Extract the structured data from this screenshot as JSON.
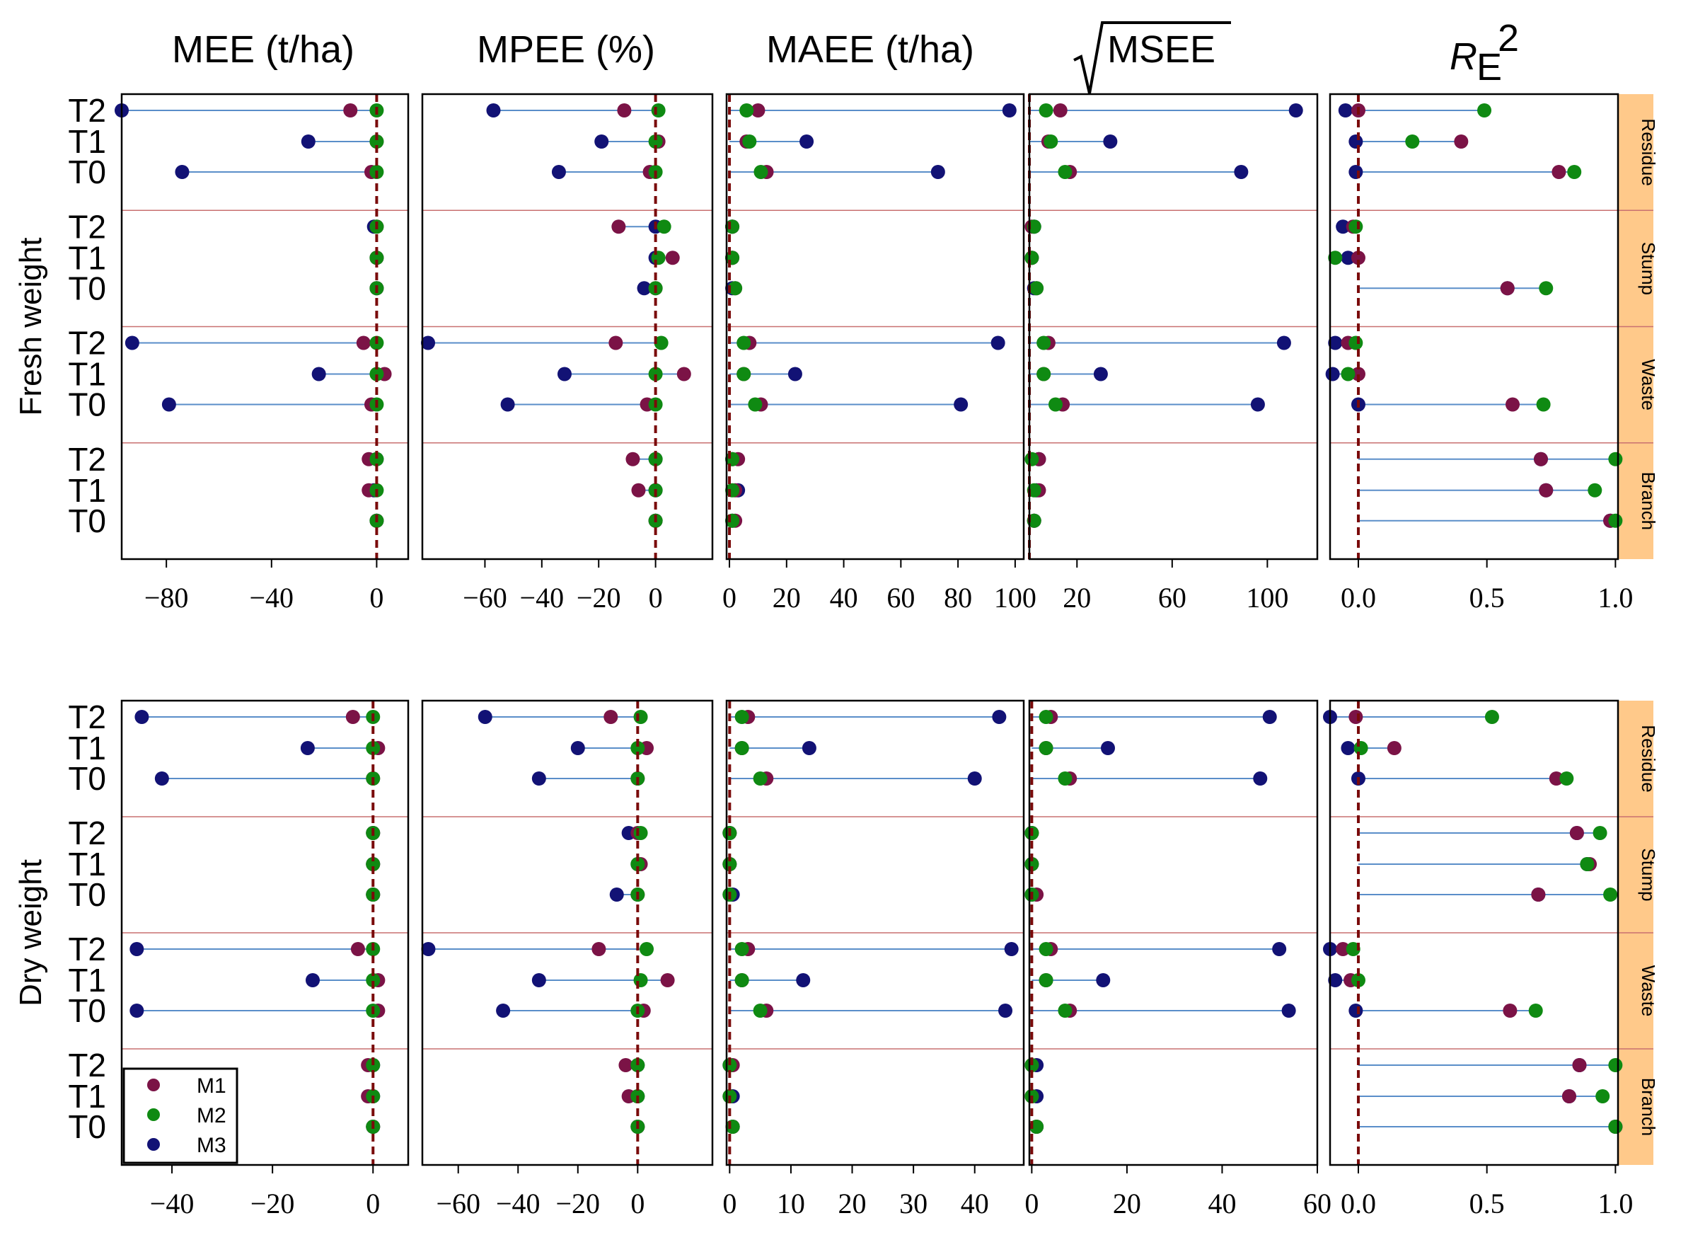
{
  "chart_data": {
    "type": "scatter",
    "title": "",
    "metrics": [
      {
        "label": "MEE (t/ha)",
        "symbol": ""
      },
      {
        "label": "MPEE (%)",
        "symbol": ""
      },
      {
        "label": "MAEE (t/ha)",
        "symbol": ""
      },
      {
        "label": "MSEE",
        "symbol": "sqrt"
      },
      {
        "label": "R",
        "symbol": "R2"
      }
    ],
    "r2_subscript": "E",
    "r2_superscript": "2",
    "groups": [
      "Residue",
      "Stump",
      "Waste",
      "Branch"
    ],
    "rows": [
      "T2",
      "T1",
      "T0"
    ],
    "models": [
      "M1",
      "M2",
      "M3"
    ],
    "colors": {
      "M1": "#7b1346",
      "M2": "#0f8a12",
      "M3": "#121275",
      "stem": "#5a8ec9",
      "refline": "#7a0a0a",
      "sep": "#c87070",
      "strip_bg": "#ffc98a"
    },
    "legend": {
      "position": "bottom-left",
      "items": [
        "M1",
        "M2",
        "M3"
      ]
    },
    "blocks": [
      {
        "name": "Fresh weight",
        "panels": [
          {
            "metric": "MEE (t/ha)",
            "xlim": [
              -97,
              12
            ],
            "ref": 0,
            "ticks": [
              -80,
              -40,
              0
            ],
            "data": {
              "Residue": {
                "T2": [
                  -10,
                  0,
                  -97
                ],
                "T1": [
                  0,
                  0,
                  -26
                ],
                "T0": [
                  -2,
                  0,
                  -74
                ]
              },
              "Stump": {
                "T2": [
                  0,
                  0,
                  -1
                ],
                "T1": [
                  0,
                  0,
                  0
                ],
                "T0": [
                  0,
                  0,
                  0
                ]
              },
              "Waste": {
                "T2": [
                  -5,
                  0,
                  -93
                ],
                "T1": [
                  3,
                  0,
                  -22
                ],
                "T0": [
                  -2,
                  0,
                  -79
                ]
              },
              "Branch": {
                "T2": [
                  -3,
                  0,
                  0
                ],
                "T1": [
                  -3,
                  0,
                  -1
                ],
                "T0": [
                  0,
                  0,
                  0
                ]
              }
            }
          },
          {
            "metric": "MPEE (%)",
            "xlim": [
              -82,
              20
            ],
            "ref": 0,
            "ticks": [
              -60,
              -40,
              -20,
              0
            ],
            "data": {
              "Residue": {
                "T2": [
                  -11,
                  1,
                  -57
                ],
                "T1": [
                  1,
                  0,
                  -19
                ],
                "T0": [
                  -2,
                  0,
                  -34
                ]
              },
              "Stump": {
                "T2": [
                  -13,
                  3,
                  0
                ],
                "T1": [
                  6,
                  1,
                  0
                ],
                "T0": [
                  0,
                  0,
                  -4
                ]
              },
              "Waste": {
                "T2": [
                  -14,
                  2,
                  -80
                ],
                "T1": [
                  10,
                  0,
                  -32
                ],
                "T0": [
                  -3,
                  0,
                  -52
                ]
              },
              "Branch": {
                "T2": [
                  -8,
                  0,
                  0
                ],
                "T1": [
                  -6,
                  0,
                  0
                ],
                "T0": [
                  0,
                  0,
                  0
                ]
              }
            }
          },
          {
            "metric": "MAEE (t/ha)",
            "xlim": [
              -1,
              103
            ],
            "ref": 0,
            "ticks": [
              0,
              20,
              40,
              60,
              80,
              100
            ],
            "data": {
              "Residue": {
                "T2": [
                  10,
                  6,
                  98
                ],
                "T1": [
                  6,
                  7,
                  27
                ],
                "T0": [
                  13,
                  11,
                  73
                ]
              },
              "Stump": {
                "T2": [
                  1,
                  1,
                  1
                ],
                "T1": [
                  1,
                  1,
                  1
                ],
                "T0": [
                  2,
                  2,
                  1
                ]
              },
              "Waste": {
                "T2": [
                  7,
                  5,
                  94
                ],
                "T1": [
                  5,
                  5,
                  23
                ],
                "T0": [
                  11,
                  9,
                  81
                ]
              },
              "Branch": {
                "T2": [
                  3,
                  1,
                  1
                ],
                "T1": [
                  2,
                  1,
                  3
                ],
                "T0": [
                  2,
                  1,
                  1
                ]
              }
            }
          },
          {
            "metric": "MSEE",
            "xlim": [
              0,
              121
            ],
            "ref": 0,
            "ticks": [
              20,
              60,
              100
            ],
            "data": {
              "Residue": {
                "T2": [
                  13,
                  7,
                  112
                ],
                "T1": [
                  8,
                  9,
                  34
                ],
                "T0": [
                  17,
                  15,
                  89
                ]
              },
              "Stump": {
                "T2": [
                  1,
                  2,
                  2
                ],
                "T1": [
                  1,
                  1,
                  1
                ],
                "T0": [
                  3,
                  3,
                  2
                ]
              },
              "Waste": {
                "T2": [
                  8,
                  6,
                  107
                ],
                "T1": [
                  6,
                  6,
                  30
                ],
                "T0": [
                  14,
                  11,
                  96
                ]
              },
              "Branch": {
                "T2": [
                  4,
                  1,
                  4
                ],
                "T1": [
                  4,
                  2,
                  3
                ],
                "T0": [
                  2,
                  2,
                  2
                ]
              }
            }
          },
          {
            "metric": "R",
            "xlim": [
              -0.11,
              1.01
            ],
            "ref": 0,
            "ticks": [
              0.0,
              0.5,
              1.0
            ],
            "data": {
              "Residue": {
                "T2": [
                  0.0,
                  0.49,
                  -0.05
                ],
                "T1": [
                  0.4,
                  0.21,
                  -0.01
                ],
                "T0": [
                  0.78,
                  0.84,
                  -0.01
                ]
              },
              "Stump": {
                "T2": [
                  -0.02,
                  -0.01,
                  -0.06
                ],
                "T1": [
                  0.0,
                  -0.09,
                  -0.04
                ],
                "T0": [
                  0.58,
                  0.73,
                  0.58
                ]
              },
              "Waste": {
                "T2": [
                  -0.04,
                  -0.01,
                  -0.09
                ],
                "T1": [
                  0.0,
                  -0.04,
                  -0.1
                ],
                "T0": [
                  0.6,
                  0.72,
                  0.0
                ]
              },
              "Branch": {
                "T2": [
                  0.71,
                  1.0,
                  0.71
                ],
                "T1": [
                  0.73,
                  0.92,
                  0.73
                ],
                "T0": [
                  0.98,
                  1.0,
                  0.98
                ]
              }
            }
          }
        ]
      },
      {
        "name": "Dry weight",
        "panels": [
          {
            "metric": "MEE (t/ha)",
            "xlim": [
              -50,
              7
            ],
            "ref": 0,
            "ticks": [
              -40,
              -20,
              0
            ],
            "data": {
              "Residue": {
                "T2": [
                  -4,
                  0,
                  -46
                ],
                "T1": [
                  1,
                  0,
                  -13
                ],
                "T0": [
                  0,
                  0,
                  -42
                ]
              },
              "Stump": {
                "T2": [
                  0,
                  0,
                  0
                ],
                "T1": [
                  0,
                  0,
                  0
                ],
                "T0": [
                  0,
                  0,
                  0
                ]
              },
              "Waste": {
                "T2": [
                  -3,
                  0,
                  -47
                ],
                "T1": [
                  1,
                  0,
                  -12
                ],
                "T0": [
                  1,
                  0,
                  -47
                ]
              },
              "Branch": {
                "T2": [
                  -1,
                  0,
                  0
                ],
                "T1": [
                  -1,
                  0,
                  0
                ],
                "T0": [
                  0,
                  0,
                  0
                ]
              }
            }
          },
          {
            "metric": "MPEE (%)",
            "xlim": [
              -72,
              25
            ],
            "ref": 0,
            "ticks": [
              -60,
              -40,
              -20,
              0
            ],
            "data": {
              "Residue": {
                "T2": [
                  -9,
                  1,
                  -51
                ],
                "T1": [
                  3,
                  0,
                  -20
                ],
                "T0": [
                  0,
                  0,
                  -33
                ]
              },
              "Stump": {
                "T2": [
                  0,
                  1,
                  -3
                ],
                "T1": [
                  1,
                  0,
                  0
                ],
                "T0": [
                  0,
                  0,
                  -7
                ]
              },
              "Waste": {
                "T2": [
                  -13,
                  3,
                  -70
                ],
                "T1": [
                  10,
                  1,
                  -33
                ],
                "T0": [
                  2,
                  0,
                  -45
                ]
              },
              "Branch": {
                "T2": [
                  -4,
                  0,
                  0
                ],
                "T1": [
                  -3,
                  0,
                  0
                ],
                "T0": [
                  0,
                  0,
                  0
                ]
              }
            }
          },
          {
            "metric": "MAEE (t/ha)",
            "xlim": [
              -0.5,
              48
            ],
            "ref": 0,
            "ticks": [
              0,
              10,
              20,
              30,
              40
            ],
            "data": {
              "Residue": {
                "T2": [
                  3,
                  2,
                  44
                ],
                "T1": [
                  2,
                  2,
                  13
                ],
                "T0": [
                  6,
                  5,
                  40
                ]
              },
              "Stump": {
                "T2": [
                  0,
                  0,
                  0
                ],
                "T1": [
                  0,
                  0,
                  0
                ],
                "T0": [
                  0,
                  0,
                  0.5
                ]
              },
              "Waste": {
                "T2": [
                  3,
                  2,
                  46
                ],
                "T1": [
                  2,
                  2,
                  12
                ],
                "T0": [
                  6,
                  5,
                  45
                ]
              },
              "Branch": {
                "T2": [
                  0.5,
                  0,
                  0
                ],
                "T1": [
                  0,
                  0,
                  0.5
                ],
                "T0": [
                  0.5,
                  0.5,
                  0.5
                ]
              }
            }
          },
          {
            "metric": "MSEE",
            "xlim": [
              -0.5,
              60
            ],
            "ref": 0,
            "ticks": [
              0,
              20,
              40,
              60
            ],
            "data": {
              "Residue": {
                "T2": [
                  4,
                  3,
                  50
                ],
                "T1": [
                  3,
                  3,
                  16
                ],
                "T0": [
                  8,
                  7,
                  48
                ]
              },
              "Stump": {
                "T2": [
                  0,
                  0,
                  0
                ],
                "T1": [
                  0,
                  0,
                  0
                ],
                "T0": [
                  1,
                  0,
                  0
                ]
              },
              "Waste": {
                "T2": [
                  4,
                  3,
                  52
                ],
                "T1": [
                  3,
                  3,
                  15
                ],
                "T0": [
                  8,
                  7,
                  54
                ]
              },
              "Branch": {
                "T2": [
                  0,
                  0,
                  1
                ],
                "T1": [
                  0,
                  0,
                  1
                ],
                "T0": [
                  1,
                  1,
                  1
                ]
              }
            }
          },
          {
            "metric": "R",
            "xlim": [
              -0.11,
              1.01
            ],
            "ref": 0,
            "ticks": [
              0.0,
              0.5,
              1.0
            ],
            "data": {
              "Residue": {
                "T2": [
                  -0.01,
                  0.52,
                  -0.11
                ],
                "T1": [
                  0.14,
                  0.01,
                  -0.04
                ],
                "T0": [
                  0.77,
                  0.81,
                  0.0
                ]
              },
              "Stump": {
                "T2": [
                  0.85,
                  0.94,
                  0.85
                ],
                "T1": [
                  0.9,
                  0.89,
                  0.89
                ],
                "T0": [
                  0.7,
                  0.98,
                  0.7
                ]
              },
              "Waste": {
                "T2": [
                  -0.06,
                  -0.02,
                  -0.11
                ],
                "T1": [
                  -0.03,
                  0.0,
                  -0.09
                ],
                "T0": [
                  0.59,
                  0.69,
                  -0.01
                ]
              },
              "Branch": {
                "T2": [
                  0.86,
                  1.0,
                  0.86
                ],
                "T1": [
                  0.82,
                  0.95,
                  0.82
                ],
                "T0": [
                  1.0,
                  1.0,
                  1.0
                ]
              }
            }
          }
        ]
      }
    ]
  }
}
